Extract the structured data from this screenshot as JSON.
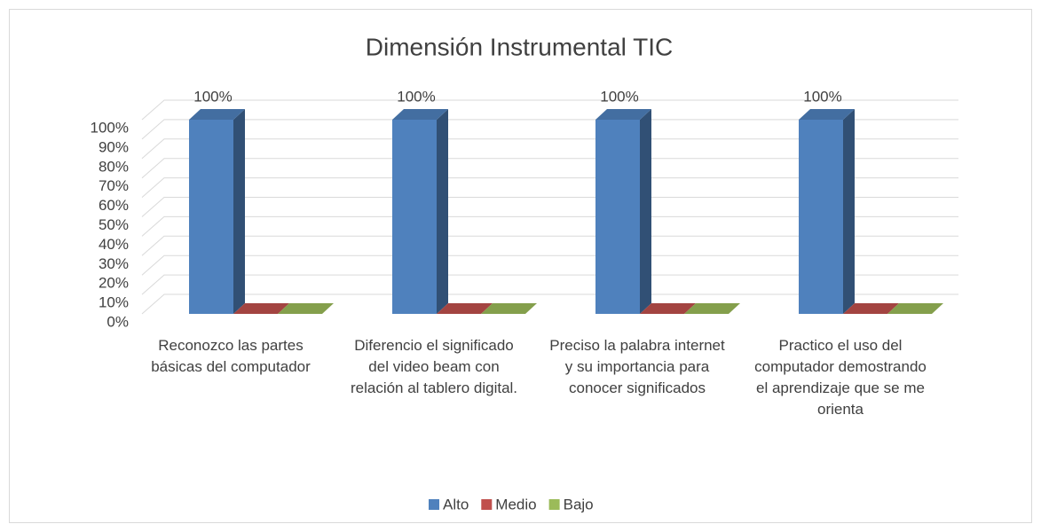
{
  "chart_data": {
    "type": "bar3d",
    "title": "Dimensión Instrumental  TIC",
    "categories": [
      "Reconozco las partes básicas del computador",
      "Diferencio el significado del video beam con relación al tablero digital.",
      "Preciso la palabra internet y su importancia para conocer significados",
      "Practico el uso del computador demostrando el aprendizaje que se me orienta"
    ],
    "series": [
      {
        "name": "Alto",
        "color": "#4f81bd",
        "values": [
          100,
          100,
          100,
          100
        ],
        "value_labels": [
          "100%",
          "100%",
          "100%",
          "100%"
        ]
      },
      {
        "name": "Medio",
        "color": "#c0504d",
        "values": [
          0,
          0,
          0,
          0
        ]
      },
      {
        "name": "Bajo",
        "color": "#9bbb59",
        "values": [
          0,
          0,
          0,
          0
        ]
      }
    ],
    "ylim": [
      0,
      100
    ],
    "yticks": [
      {
        "value": 0,
        "label": "0%"
      },
      {
        "value": 10,
        "label": "10%"
      },
      {
        "value": 20,
        "label": "20%"
      },
      {
        "value": 30,
        "label": "30%"
      },
      {
        "value": 40,
        "label": "40%"
      },
      {
        "value": 50,
        "label": "50%"
      },
      {
        "value": 60,
        "label": "60%"
      },
      {
        "value": 70,
        "label": "70%"
      },
      {
        "value": 80,
        "label": "80%"
      },
      {
        "value": 90,
        "label": "90%"
      },
      {
        "value": 100,
        "label": "100%"
      }
    ],
    "grid": true,
    "legend": "bottom"
  }
}
